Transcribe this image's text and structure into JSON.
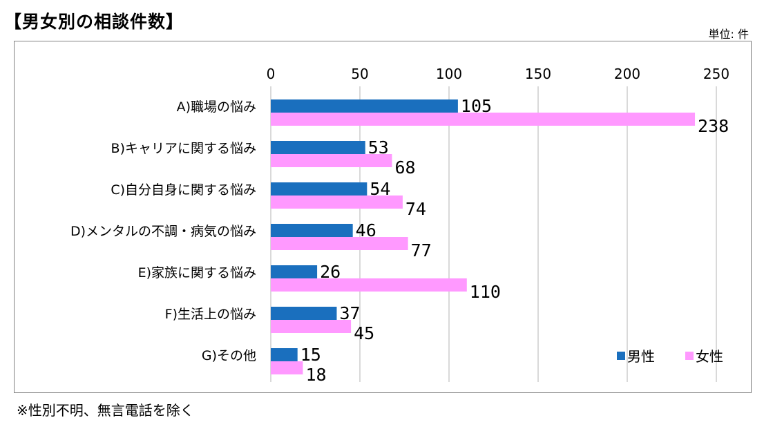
{
  "chart_data": {
    "type": "bar",
    "orientation": "horizontal",
    "title": "【男女別の相談件数】",
    "unit_label": "単位: 件",
    "note": "※性別不明、無言電話を除く",
    "categories": [
      "A)職場の悩み",
      "B)キャリアに関する悩み",
      "C)自分自身に関する悩み",
      "D)メンタルの不調・病気の悩み",
      "E)家族に関する悩み",
      "F)生活上の悩み",
      "G)その他"
    ],
    "series": [
      {
        "name": "男性",
        "color": "#1a6fbe",
        "values": [
          105,
          53,
          54,
          46,
          26,
          37,
          15
        ]
      },
      {
        "name": "女性",
        "color": "#ff99ff",
        "values": [
          238,
          68,
          74,
          77,
          110,
          45,
          18
        ]
      }
    ],
    "xlim": [
      0,
      250
    ],
    "xticks": [
      0,
      50,
      100,
      150,
      200,
      250
    ],
    "grid": true,
    "legend_position": "bottom-right"
  }
}
